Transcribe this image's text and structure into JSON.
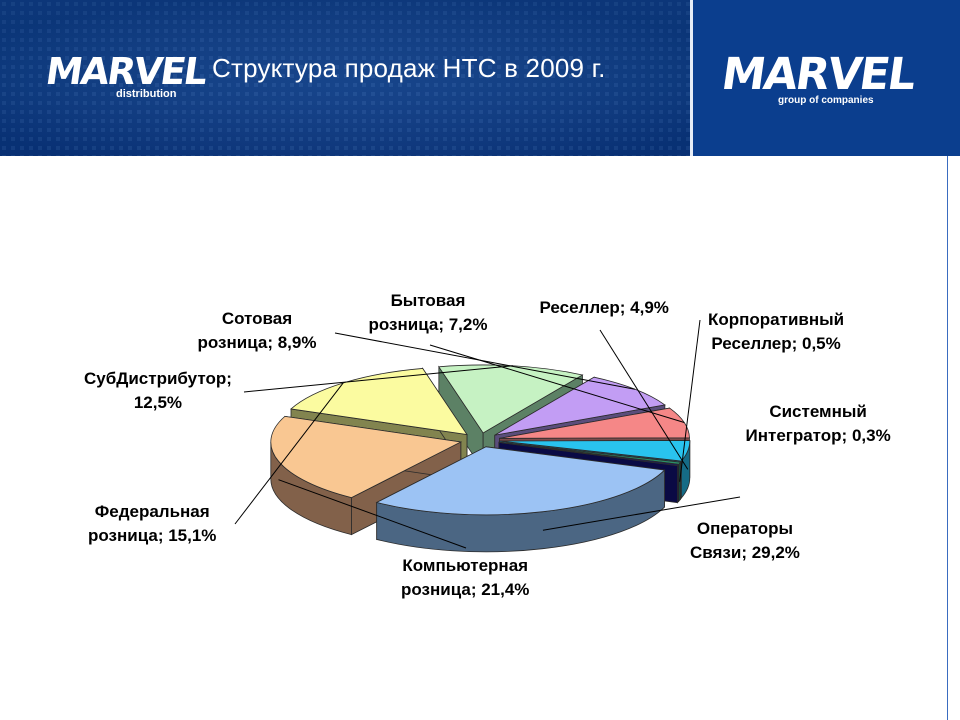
{
  "slide": {
    "title": "Структура продаж НТС в 2009 г."
  },
  "logos": {
    "left": {
      "word": "MARVEL",
      "sub": "distribution"
    },
    "right": {
      "word": "MARVEL",
      "sub": "group of companies"
    }
  },
  "colors": {
    "header_bg": "#0a3a84",
    "title_text": "#ffffff"
  },
  "chart_data": {
    "type": "pie",
    "title": "Структура продаж НТС в 2009 г.",
    "three_d": true,
    "exploded": true,
    "legend": "none",
    "slices": [
      {
        "name": "Операторы Связи",
        "value": 29.2,
        "label_lines": [
          "Операторы",
          "Связи; 29,2%"
        ],
        "top_color": "#9cc3f4",
        "side_color": "#4b6683"
      },
      {
        "name": "Компьютерная розница",
        "value": 21.4,
        "label_lines": [
          "Компьютерная",
          "розница; 21,4%"
        ],
        "top_color": "#f9c792",
        "side_color": "#82614a"
      },
      {
        "name": "Федеральная розница",
        "value": 15.1,
        "label_lines": [
          "Федеральная",
          "розница; 15,1%"
        ],
        "top_color": "#fbfba0",
        "side_color": "#82844f"
      },
      {
        "name": "СубДистрибутор",
        "value": 12.5,
        "label_lines": [
          "СубДистрибутор;",
          "12,5%"
        ],
        "top_color": "#c6f2c3",
        "side_color": "#5c8165"
      },
      {
        "name": "Сотовая розница",
        "value": 8.9,
        "label_lines": [
          "Сотовая",
          "розница; 8,9%"
        ],
        "top_color": "#c29df4",
        "side_color": "#5a4d7b"
      },
      {
        "name": "Бытовая розница",
        "value": 7.2,
        "label_lines": [
          "Бытовая",
          "розница; 7,2%"
        ],
        "top_color": "#f58787",
        "side_color": "#7b4b4b"
      },
      {
        "name": "Реселлер",
        "value": 4.9,
        "label_lines": [
          "Реселлер; 4,9%"
        ],
        "top_color": "#29c3ee",
        "side_color": "#156b86"
      },
      {
        "name": "Корпоративный Реселлер",
        "value": 0.5,
        "label_lines": [
          "Корпоративный",
          "Реселлер; 0,5%"
        ],
        "top_color": "#2a8f6a",
        "side_color": "#164a38"
      },
      {
        "name": "Системный Интегратор",
        "value": 0.3,
        "label_lines": [
          "Системный",
          "Интегратор; 0,3%"
        ],
        "top_color": "#12127a",
        "side_color": "#0a0a44"
      }
    ]
  }
}
